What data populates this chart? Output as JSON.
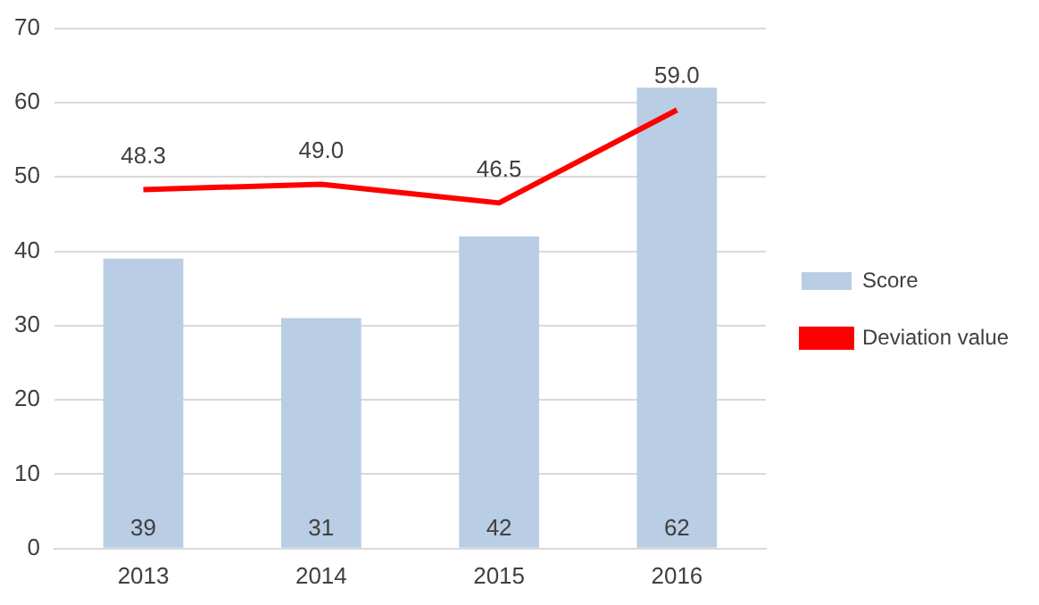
{
  "chart_data": {
    "type": "bar",
    "categories": [
      "2013",
      "2014",
      "2015",
      "2016"
    ],
    "series": [
      {
        "name": "Score",
        "color": "#b9cde5",
        "values": [
          39,
          31,
          42,
          62
        ],
        "value_labels": [
          "39",
          "31",
          "42",
          "62"
        ]
      },
      {
        "name": "Deviation value",
        "type": "line",
        "color": "#ff0000",
        "values": [
          48.3,
          49.0,
          46.5,
          59.0
        ],
        "value_labels": [
          "48.3",
          "49.0",
          "46.5",
          "59.0"
        ]
      }
    ],
    "ylim": [
      0,
      70
    ],
    "yticks": [
      0,
      10,
      20,
      30,
      40,
      50,
      60,
      70
    ],
    "grid": "y",
    "legend": "right",
    "marker": "none",
    "line_style": "solid"
  }
}
